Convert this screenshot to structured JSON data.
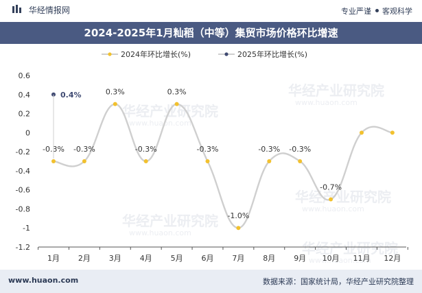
{
  "brand": {
    "name": "华经情报网",
    "icon": "bar-logo-icon"
  },
  "tagline": {
    "left": "专业严谨",
    "right": "客观科学"
  },
  "title": "2024-2025年1月籼稻（中等）集贸市场价格环比增速",
  "footer": {
    "site": "www.huaon.com",
    "source": "数据来源：国家统计局，华经产业研究院整理"
  },
  "watermark": {
    "cn": "华经产业研究院",
    "en": "www.huaon.com"
  },
  "colors": {
    "title_bg": "#4a5a82",
    "series_2024": "#f2c12e",
    "series_2025": "#3f4a72",
    "curve": "#cfcfcf"
  },
  "chart_data": {
    "type": "line",
    "categories": [
      "1月",
      "2月",
      "3月",
      "4月",
      "5月",
      "6月",
      "7月",
      "8月",
      "9月",
      "10月",
      "11月",
      "12月"
    ],
    "y_ticks": [
      "0.6",
      "0.4",
      "0.2",
      "0",
      "-0.2",
      "-0.4",
      "-0.6",
      "-0.8",
      "-1",
      "-1.2"
    ],
    "ylim": [
      -1.2,
      0.6
    ],
    "legend_position": "top",
    "series": [
      {
        "name": "2024年环比增长(%)",
        "values": [
          -0.3,
          -0.3,
          0.3,
          -0.3,
          0.3,
          -0.3,
          -1.0,
          -0.3,
          -0.3,
          -0.7,
          0,
          0
        ],
        "labels": [
          "-0.3%",
          "-0.3%",
          "0.3%",
          "-0.3%",
          "0.3%",
          "-0.3%",
          "-1.0%",
          "-0.3%",
          "-0.3%",
          "-0.7%",
          "",
          ""
        ]
      },
      {
        "name": "2025年环比增长(%)",
        "values": [
          0.4,
          null,
          null,
          null,
          null,
          null,
          null,
          null,
          null,
          null,
          null,
          null
        ],
        "labels": [
          "0.4%",
          "",
          "",
          "",
          "",
          "",
          "",
          "",
          "",
          "",
          "",
          ""
        ]
      }
    ]
  }
}
